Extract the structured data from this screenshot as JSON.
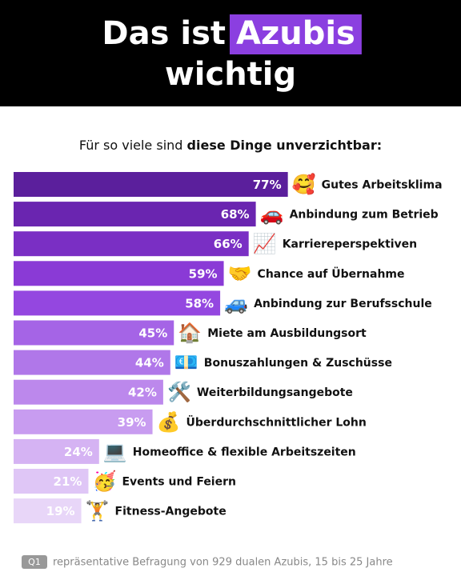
{
  "chart_data": {
    "type": "bar",
    "orientation": "horizontal",
    "title_parts": [
      "Das ist",
      "Azubis",
      "wichtig"
    ],
    "subtitle_parts": [
      "Für so viele sind",
      "diese Dinge unverzichtbar:"
    ],
    "categories": [
      "Gutes Arbeitsklima",
      "Anbindung zum Betrieb",
      "Karriereperspektiven",
      "Chance auf Übernahme",
      "Anbindung zur Berufsschule",
      "Miete am Ausbildungsort",
      "Bonuszahlungen & Zuschüsse",
      "Weiterbildungsangebote",
      "Überdurchschnittlicher Lohn",
      "Homeoffice & flexible Arbeitszeiten",
      "Events und Feiern",
      "Fitness-Angebote"
    ],
    "icons": [
      "🥰",
      "🚗",
      "📈",
      "🤝",
      "🚙",
      "🏠",
      "💶",
      "🛠️",
      "💰",
      "💻",
      "🥳",
      "🏋️"
    ],
    "values": [
      77,
      68,
      66,
      59,
      58,
      45,
      44,
      42,
      39,
      24,
      21,
      19
    ],
    "value_labels": [
      "77%",
      "68%",
      "66%",
      "59%",
      "58%",
      "45%",
      "44%",
      "42%",
      "39%",
      "24%",
      "21%",
      "19%"
    ],
    "colors": [
      "#5b1f9c",
      "#6a25b0",
      "#7a2fc4",
      "#8a3ad6",
      "#9447e0",
      "#a564e6",
      "#b077e9",
      "#bc88ec",
      "#c89cf0",
      "#d5b3f3",
      "#dfc6f6",
      "#e8d6f8"
    ],
    "highlight_color": "#8b3fe0",
    "xlim": [
      0,
      100
    ],
    "source_badge": "Q1",
    "source": "repräsentative Befragung von 929 dualen Azubis, 15 bis 25 Jahre"
  }
}
